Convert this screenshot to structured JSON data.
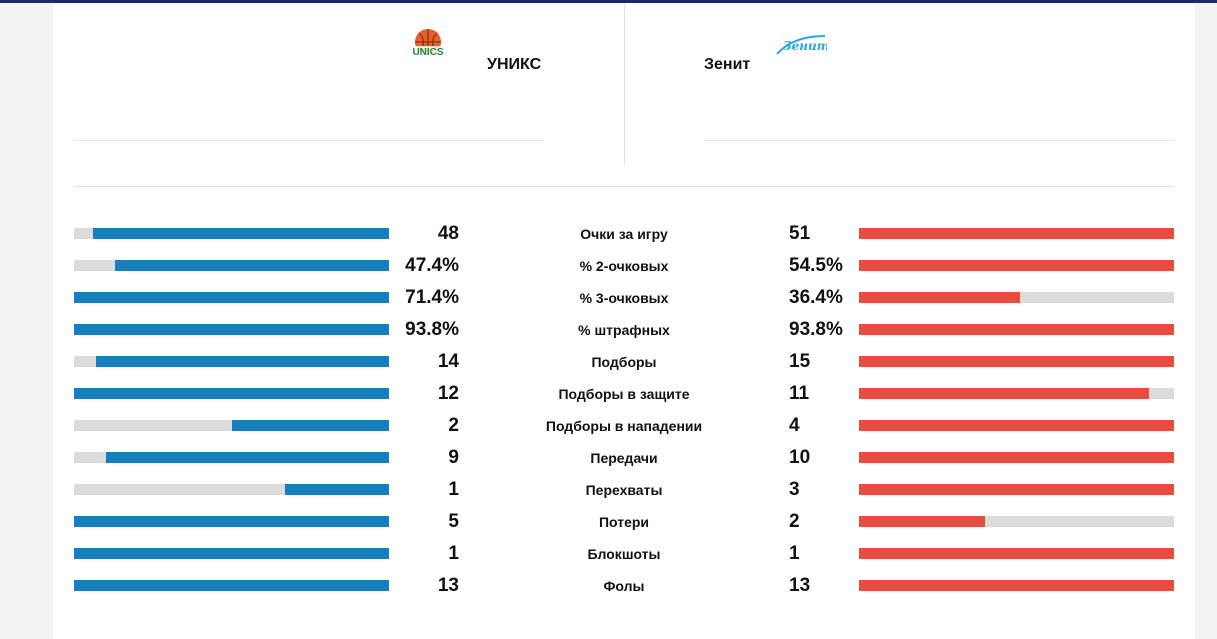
{
  "header": {
    "home": {
      "name": "УНИКС",
      "logo_text": "UNICS"
    },
    "away": {
      "name": "Зенит",
      "logo_text": "Зенит"
    }
  },
  "colors": {
    "home": "#1a7dc0",
    "away": "#e84c3d",
    "track": "#dcdcdc"
  },
  "stats": [
    {
      "label": "Очки за игру",
      "home": "48",
      "away": "51",
      "home_fill": 0.94,
      "away_fill": 1.0
    },
    {
      "label": "% 2-очковых",
      "home": "47.4%",
      "away": "54.5%",
      "home_fill": 0.87,
      "away_fill": 1.0
    },
    {
      "label": "% 3-очковых",
      "home": "71.4%",
      "away": "36.4%",
      "home_fill": 1.0,
      "away_fill": 0.51
    },
    {
      "label": "% штрафных",
      "home": "93.8%",
      "away": "93.8%",
      "home_fill": 1.0,
      "away_fill": 1.0
    },
    {
      "label": "Подборы",
      "home": "14",
      "away": "15",
      "home_fill": 0.93,
      "away_fill": 1.0
    },
    {
      "label": "Подборы в защите",
      "home": "12",
      "away": "11",
      "home_fill": 1.0,
      "away_fill": 0.92
    },
    {
      "label": "Подборы в нападении",
      "home": "2",
      "away": "4",
      "home_fill": 0.5,
      "away_fill": 1.0
    },
    {
      "label": "Передачи",
      "home": "9",
      "away": "10",
      "home_fill": 0.9,
      "away_fill": 1.0
    },
    {
      "label": "Перехваты",
      "home": "1",
      "away": "3",
      "home_fill": 0.33,
      "away_fill": 1.0
    },
    {
      "label": "Потери",
      "home": "5",
      "away": "2",
      "home_fill": 1.0,
      "away_fill": 0.4
    },
    {
      "label": "Блокшоты",
      "home": "1",
      "away": "1",
      "home_fill": 1.0,
      "away_fill": 1.0
    },
    {
      "label": "Фолы",
      "home": "13",
      "away": "13",
      "home_fill": 1.0,
      "away_fill": 1.0
    }
  ]
}
